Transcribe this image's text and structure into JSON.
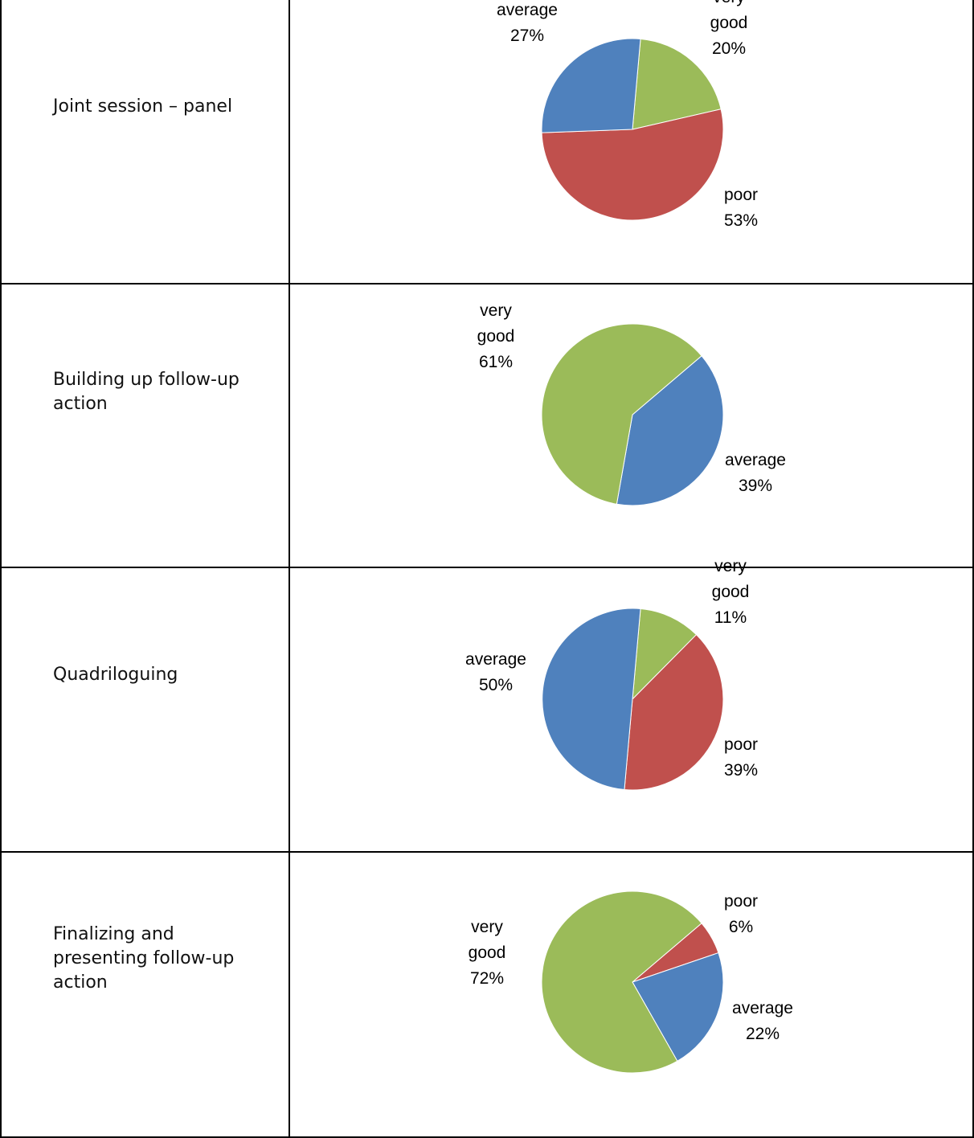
{
  "table": {
    "rows": [
      {
        "label": "Joint session – panel"
      },
      {
        "label": "Building up follow-up action"
      },
      {
        "label": "Quadriloguing"
      },
      {
        "label": "Finalizing and presenting follow-up action"
      }
    ]
  },
  "colors": {
    "very_good": "#9BBB59",
    "poor": "#C0504D",
    "average": "#4F81BD"
  },
  "chart_data": [
    {
      "type": "pie",
      "slices": [
        {
          "category": "very good",
          "value": 20,
          "label": "20%",
          "color": "#9BBB59"
        },
        {
          "category": "poor",
          "value": 53,
          "label": "53%",
          "color": "#C0504D"
        },
        {
          "category": "average",
          "value": 27,
          "label": "27%",
          "color": "#4F81BD"
        }
      ]
    },
    {
      "type": "pie",
      "slices": [
        {
          "category": "average",
          "value": 39,
          "label": "39%",
          "color": "#4F81BD"
        },
        {
          "category": "very good",
          "value": 61,
          "label": "61%",
          "color": "#9BBB59"
        }
      ]
    },
    {
      "type": "pie",
      "slices": [
        {
          "category": "very good",
          "value": 11,
          "label": "11%",
          "color": "#9BBB59"
        },
        {
          "category": "poor",
          "value": 39,
          "label": "39%",
          "color": "#C0504D"
        },
        {
          "category": "average",
          "value": 50,
          "label": "50%",
          "color": "#4F81BD"
        }
      ]
    },
    {
      "type": "pie",
      "slices": [
        {
          "category": "poor",
          "value": 6,
          "label": "6%",
          "color": "#C0504D"
        },
        {
          "category": "average",
          "value": 22,
          "label": "22%",
          "color": "#4F81BD"
        },
        {
          "category": "very good",
          "value": 72,
          "label": "72%",
          "color": "#9BBB59"
        }
      ]
    }
  ]
}
